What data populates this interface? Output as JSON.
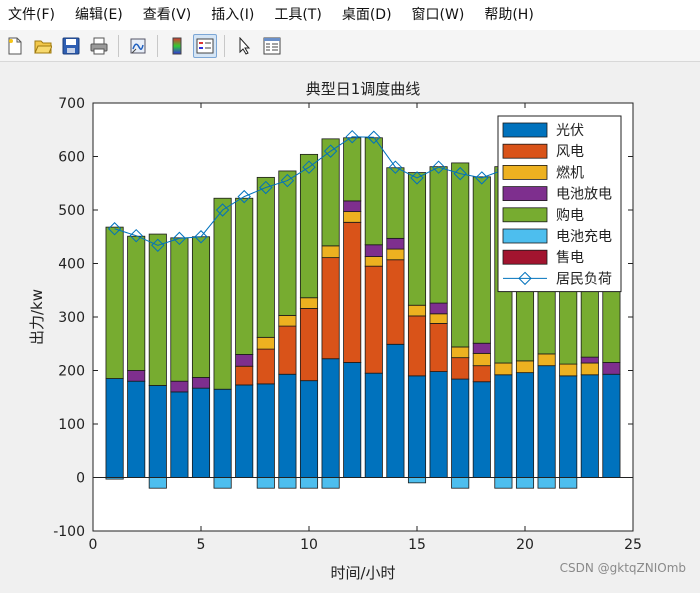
{
  "menu": [
    "文件(F)",
    "编辑(E)",
    "查看(V)",
    "插入(I)",
    "工具(T)",
    "桌面(D)",
    "窗口(W)",
    "帮助(H)"
  ],
  "toolbar": {
    "icons": [
      "new-file-icon",
      "open-folder-icon",
      "save-icon",
      "print-icon",
      "link-plot-icon",
      "insert-colorbar-icon",
      "insert-legend-icon",
      "pointer-icon",
      "property-inspector-icon"
    ]
  },
  "watermark": "CSDN @gktqZNIOmb",
  "chart_data": {
    "type": "bar",
    "stacked": true,
    "title": "典型日1调度曲线",
    "xlabel": "时间/小时",
    "ylabel": "出力/kw",
    "xlim": [
      0,
      25
    ],
    "ylim": [
      -100,
      700
    ],
    "xticks": [
      0,
      5,
      10,
      15,
      20,
      25
    ],
    "yticks": [
      -100,
      0,
      100,
      200,
      300,
      400,
      500,
      600,
      700
    ],
    "legend_position": "top-right",
    "x": [
      1,
      2,
      3,
      4,
      5,
      6,
      7,
      8,
      9,
      10,
      11,
      12,
      13,
      14,
      15,
      16,
      17,
      18,
      19,
      20,
      21,
      22,
      23,
      24
    ],
    "series": [
      {
        "name": "光伏",
        "color": "#0072bd",
        "values": [
          185,
          180,
          172,
          160,
          167,
          165,
          173,
          175,
          193,
          181,
          222,
          215,
          195,
          249,
          190,
          198,
          184,
          179,
          192,
          196,
          209,
          190,
          192,
          193
        ]
      },
      {
        "name": "风电",
        "color": "#d95319",
        "values": [
          0,
          0,
          0,
          0,
          0,
          0,
          35,
          65,
          90,
          135,
          189,
          262,
          200,
          158,
          112,
          90,
          40,
          30,
          0,
          0,
          0,
          0,
          0,
          0
        ]
      },
      {
        "name": "燃机",
        "color": "#edb120",
        "values": [
          0,
          0,
          0,
          0,
          0,
          0,
          0,
          22,
          20,
          20,
          22,
          20,
          18,
          20,
          20,
          18,
          20,
          23,
          22,
          22,
          22,
          22,
          22,
          0
        ]
      },
      {
        "name": "电池放电",
        "color": "#7e2f8e",
        "values": [
          0,
          20,
          0,
          20,
          20,
          0,
          22,
          0,
          0,
          0,
          0,
          20,
          22,
          20,
          0,
          20,
          0,
          19,
          0,
          0,
          0,
          0,
          11,
          22
        ]
      },
      {
        "name": "购电",
        "color": "#77ac30",
        "values": [
          283,
          251,
          283,
          268,
          263,
          357,
          292,
          299,
          270,
          268,
          200,
          118,
          200,
          132,
          248,
          255,
          344,
          311,
          367,
          362,
          329,
          390,
          374,
          405
        ]
      },
      {
        "name": "电池充电",
        "color": "#4dbeee",
        "values": [
          -3,
          0,
          -20,
          0,
          0,
          -20,
          0,
          -20,
          -20,
          -20,
          -20,
          0,
          0,
          0,
          -10,
          0,
          -20,
          0,
          -20,
          -20,
          -20,
          -20,
          0,
          0
        ]
      },
      {
        "name": "售电",
        "color": "#a2142f",
        "values": [
          0,
          0,
          0,
          0,
          0,
          0,
          0,
          0,
          0,
          0,
          0,
          0,
          0,
          0,
          0,
          0,
          0,
          0,
          0,
          0,
          0,
          0,
          0,
          0
        ]
      }
    ],
    "load": {
      "name": "居民负荷",
      "color": "#0072bd",
      "values": [
        465,
        452,
        434,
        447,
        450,
        500,
        525,
        542,
        555,
        580,
        610,
        637,
        636,
        580,
        560,
        580,
        568,
        560,
        575,
        590,
        605,
        620,
        640,
        655
      ]
    }
  }
}
